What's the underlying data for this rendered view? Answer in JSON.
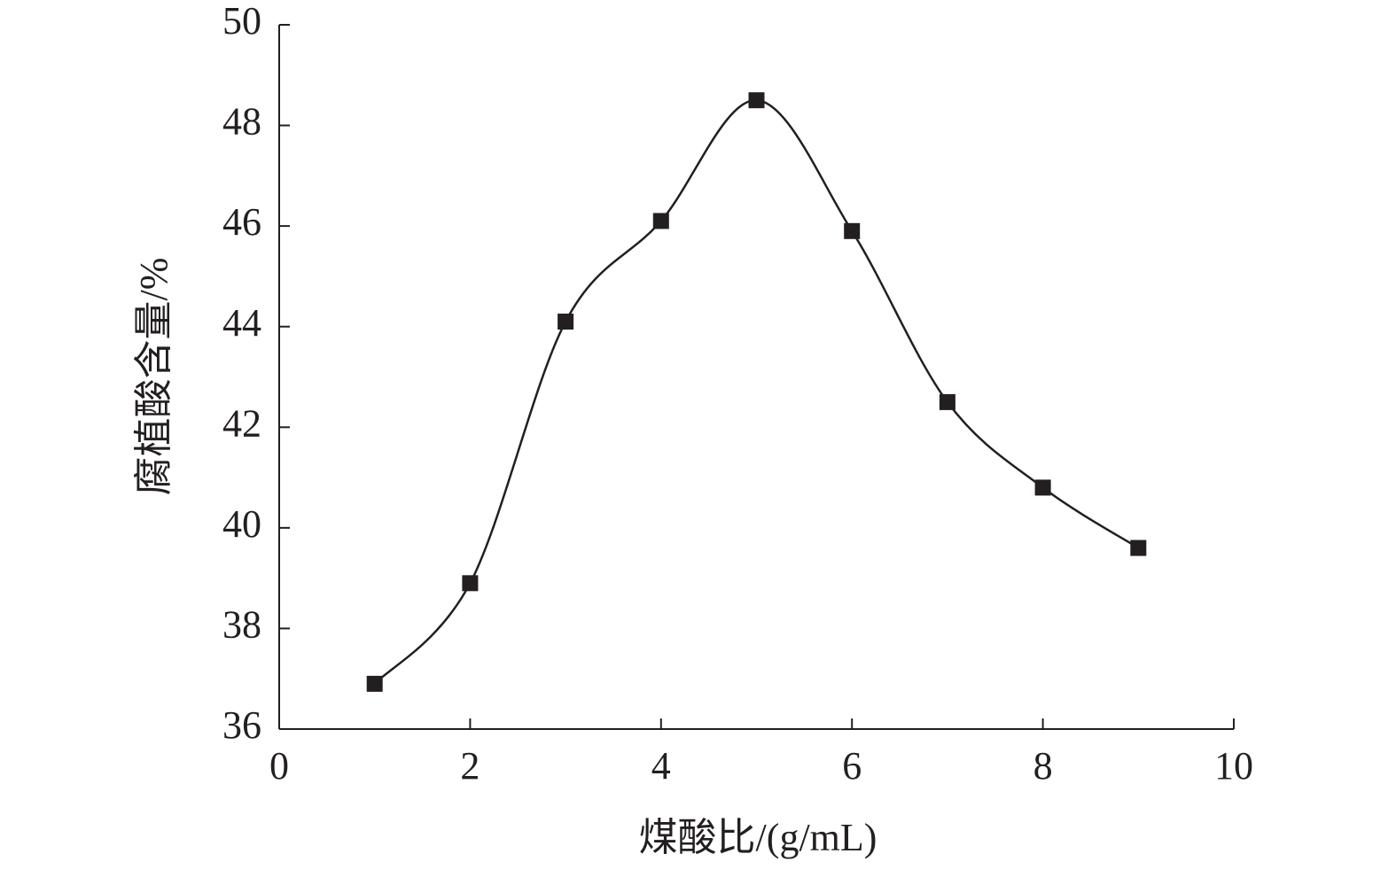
{
  "chart_data": {
    "type": "line",
    "x_label": "煤酸比/(g/mL)",
    "y_label": "腐植酸含量/%",
    "x": [
      1,
      2,
      3,
      4,
      5,
      6,
      7,
      8,
      9
    ],
    "values": [
      36.9,
      38.9,
      44.1,
      46.1,
      48.5,
      45.9,
      42.5,
      40.8,
      39.6
    ],
    "color": "#231f20",
    "marker": "square",
    "smooth": true,
    "xlim": [
      0,
      10
    ],
    "xticks": [
      0,
      2,
      4,
      6,
      8,
      10
    ],
    "ylim": [
      36,
      50
    ],
    "yticks": [
      36,
      38,
      40,
      42,
      44,
      46,
      48,
      50
    ],
    "grid": false
  }
}
